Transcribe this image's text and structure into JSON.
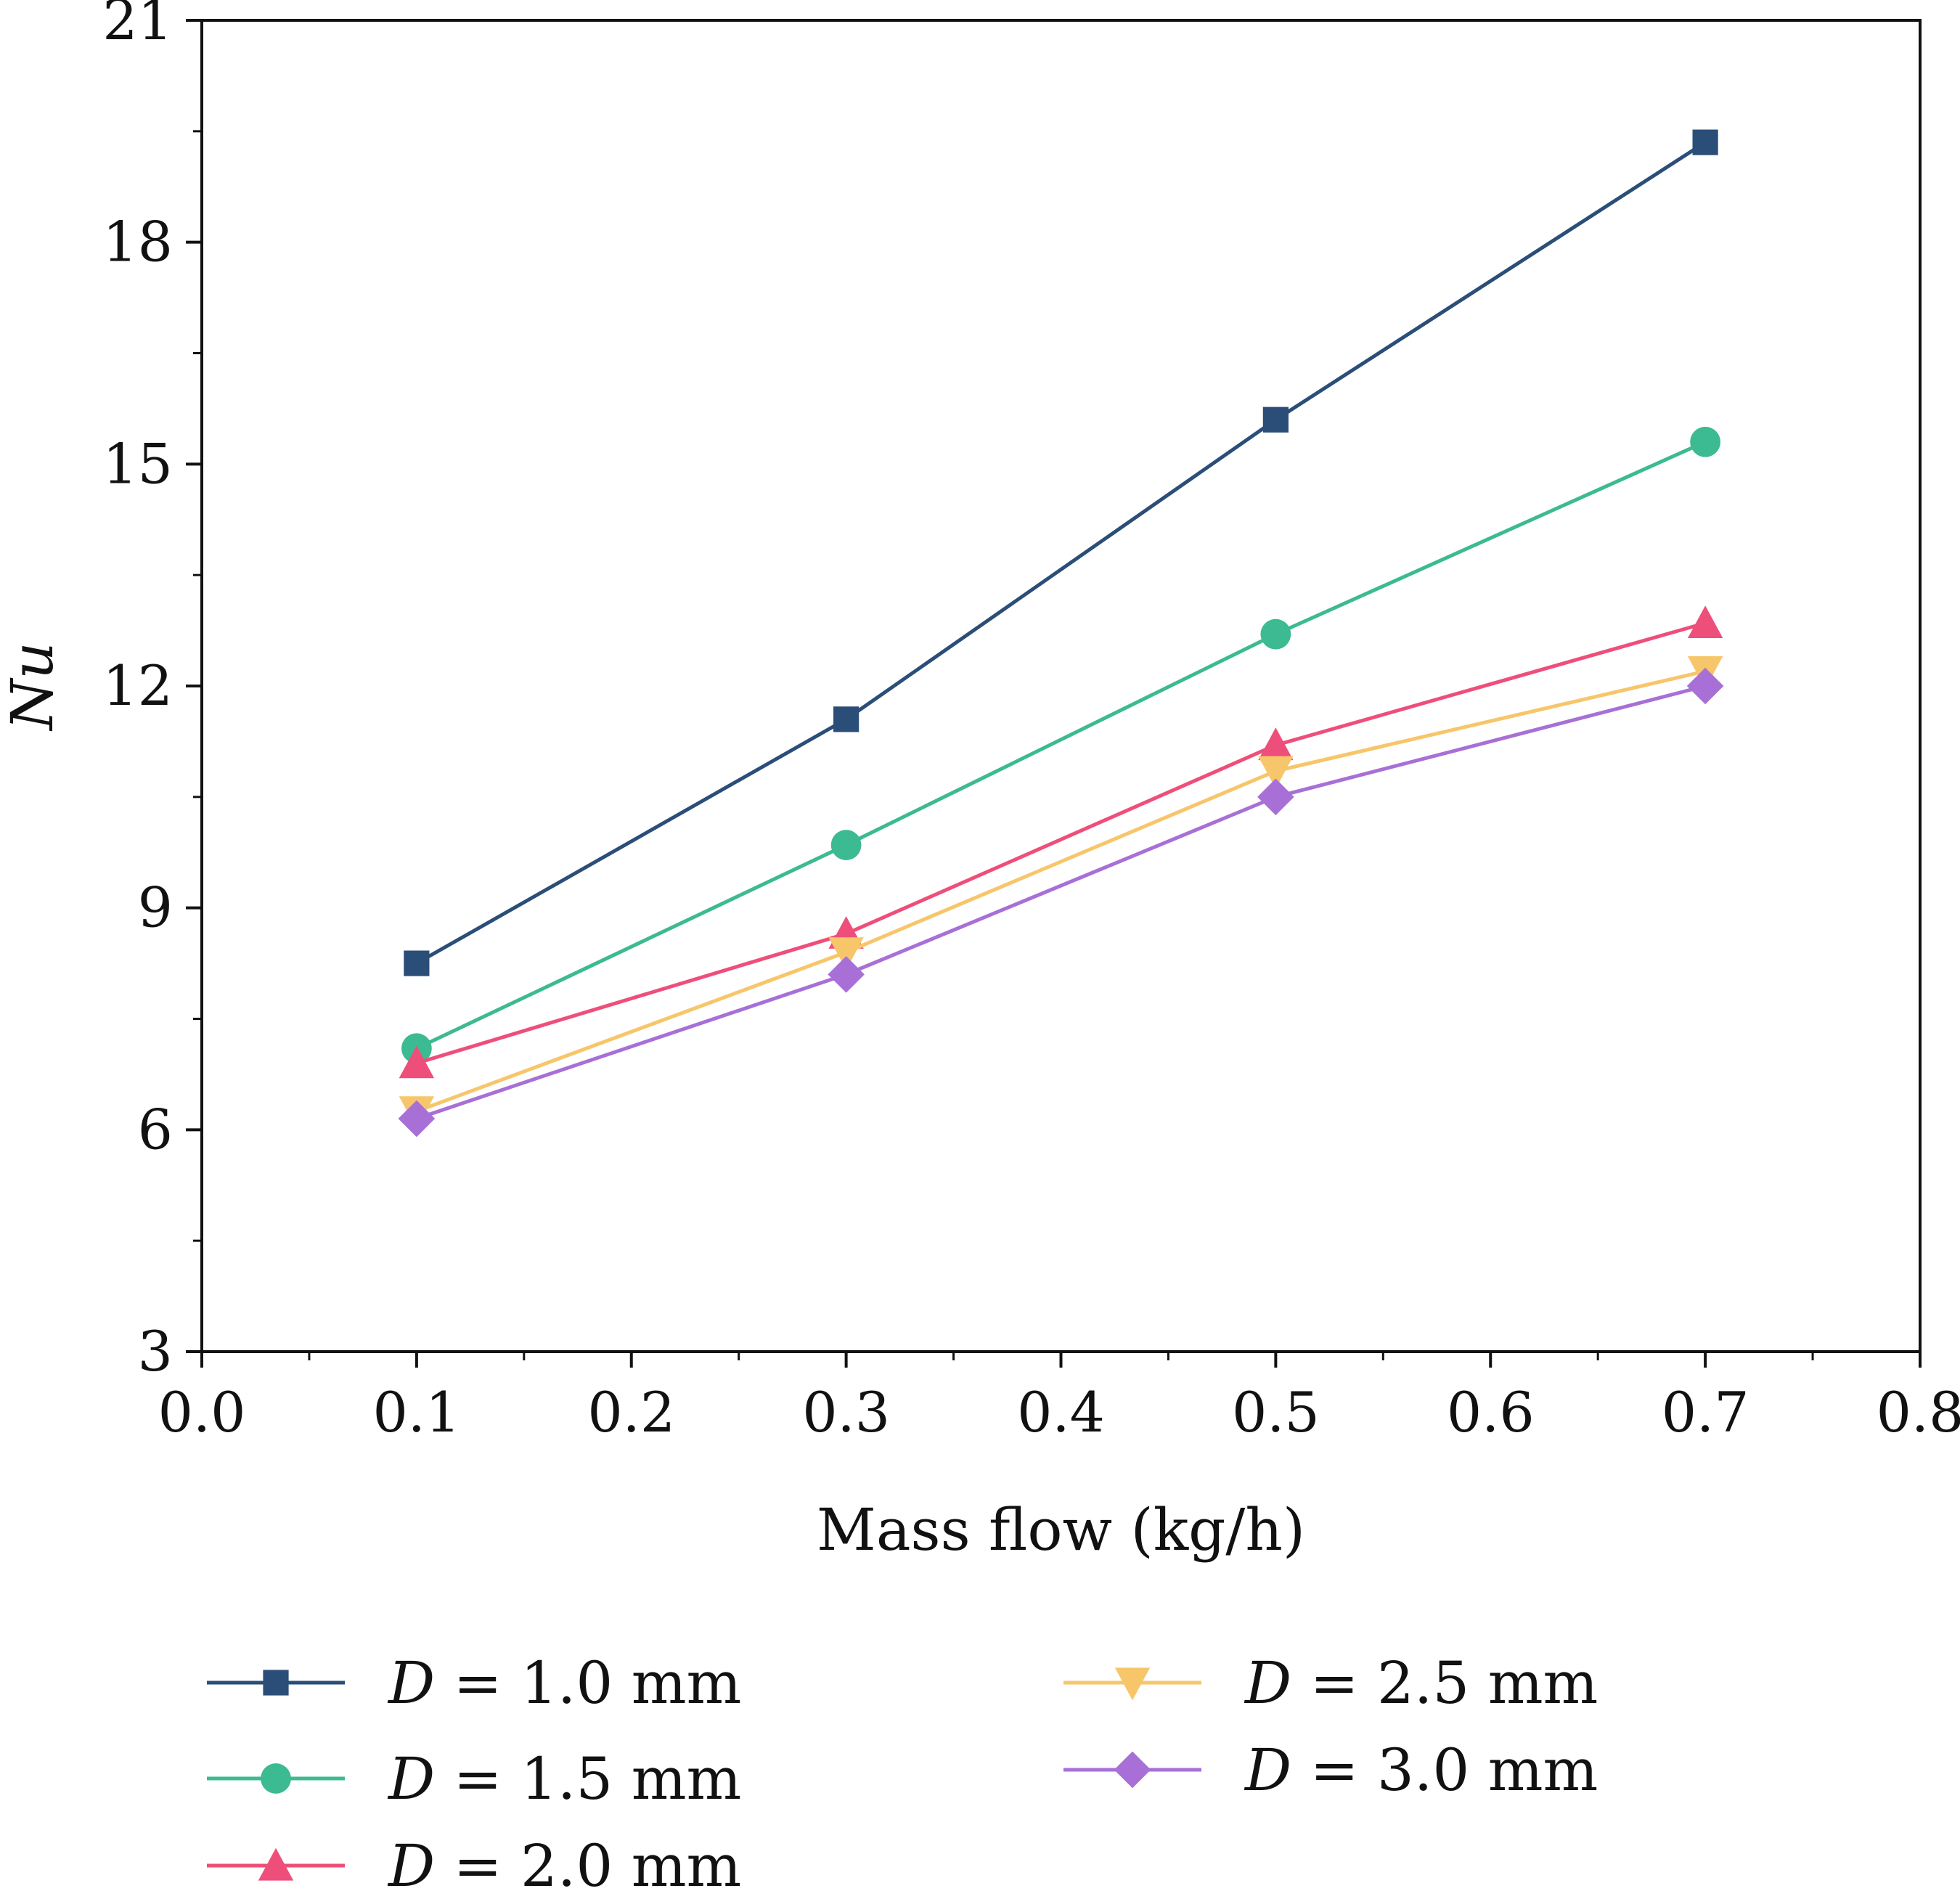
{
  "chart_data": {
    "type": "line",
    "xlabel": "Mass flow (kg/h)",
    "ylabel": "Nu",
    "xlim": [
      0.0,
      0.8
    ],
    "ylim": [
      3,
      21
    ],
    "xticks": [
      "0.0",
      "0.1",
      "0.2",
      "0.3",
      "0.4",
      "0.5",
      "0.6",
      "0.7",
      "0.8"
    ],
    "yticks": [
      "3",
      "6",
      "9",
      "12",
      "15",
      "18",
      "21"
    ],
    "x": [
      0.1,
      0.3,
      0.5,
      0.7
    ],
    "legend_position": "below",
    "grid": false,
    "series": [
      {
        "name": "D = 1.0 mm",
        "name_italic": "D",
        "name_rest": " = 1.0 mm",
        "marker": "square",
        "color": "#2b4e78",
        "values": [
          8.25,
          11.55,
          15.6,
          19.35
        ]
      },
      {
        "name": "D = 1.5 mm",
        "name_italic": "D",
        "name_rest": " = 1.5 mm",
        "marker": "circle",
        "color": "#3cba92",
        "values": [
          7.1,
          9.85,
          12.7,
          15.3
        ]
      },
      {
        "name": "D = 2.0 mm",
        "name_italic": "D",
        "name_rest": " = 2.0 mm",
        "marker": "triangle-up",
        "color": "#ee4f7a",
        "values": [
          6.9,
          8.65,
          11.2,
          12.85
        ]
      },
      {
        "name": "D = 2.5 mm",
        "name_italic": "D",
        "name_rest": " = 2.5 mm",
        "marker": "triangle-down",
        "color": "#f7c66a",
        "values": [
          6.25,
          8.4,
          10.85,
          12.2
        ]
      },
      {
        "name": "D = 3.0 mm",
        "name_italic": "D",
        "name_rest": " = 3.0 mm",
        "marker": "diamond",
        "color": "#a870d6",
        "values": [
          6.15,
          8.1,
          10.5,
          12.0
        ]
      }
    ]
  }
}
